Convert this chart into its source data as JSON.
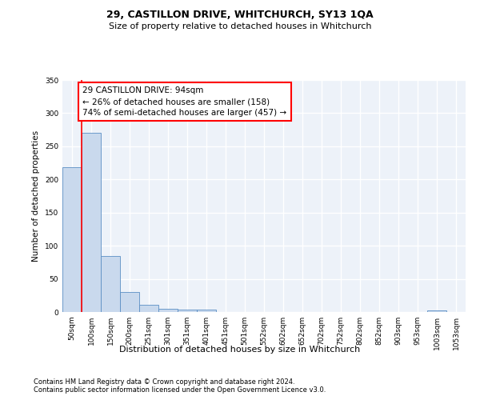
{
  "title": "29, CASTILLON DRIVE, WHITCHURCH, SY13 1QA",
  "subtitle": "Size of property relative to detached houses in Whitchurch",
  "xlabel": "Distribution of detached houses by size in Whitchurch",
  "ylabel": "Number of detached properties",
  "categories": [
    "50sqm",
    "100sqm",
    "150sqm",
    "200sqm",
    "251sqm",
    "301sqm",
    "351sqm",
    "401sqm",
    "451sqm",
    "501sqm",
    "552sqm",
    "602sqm",
    "652sqm",
    "702sqm",
    "752sqm",
    "802sqm",
    "852sqm",
    "903sqm",
    "953sqm",
    "1003sqm",
    "1053sqm"
  ],
  "values": [
    218,
    270,
    85,
    30,
    11,
    5,
    4,
    4,
    0,
    0,
    0,
    0,
    0,
    0,
    0,
    0,
    0,
    0,
    0,
    3,
    0
  ],
  "bar_color": "#c9d9ed",
  "bar_edge_color": "#5b8ec4",
  "property_line_x": 0.5,
  "annotation_text": "29 CASTILLON DRIVE: 94sqm\n← 26% of detached houses are smaller (158)\n74% of semi-detached houses are larger (457) →",
  "annotation_box_color": "white",
  "annotation_box_edge_color": "red",
  "vline_color": "red",
  "ylim": [
    0,
    350
  ],
  "yticks": [
    0,
    50,
    100,
    150,
    200,
    250,
    300,
    350
  ],
  "background_color": "#edf2f9",
  "grid_color": "white",
  "title_fontsize": 9,
  "subtitle_fontsize": 8,
  "ylabel_fontsize": 7.5,
  "xlabel_fontsize": 8,
  "tick_fontsize": 6.5,
  "annot_fontsize": 7.5,
  "footer_line1": "Contains HM Land Registry data © Crown copyright and database right 2024.",
  "footer_line2": "Contains public sector information licensed under the Open Government Licence v3.0."
}
